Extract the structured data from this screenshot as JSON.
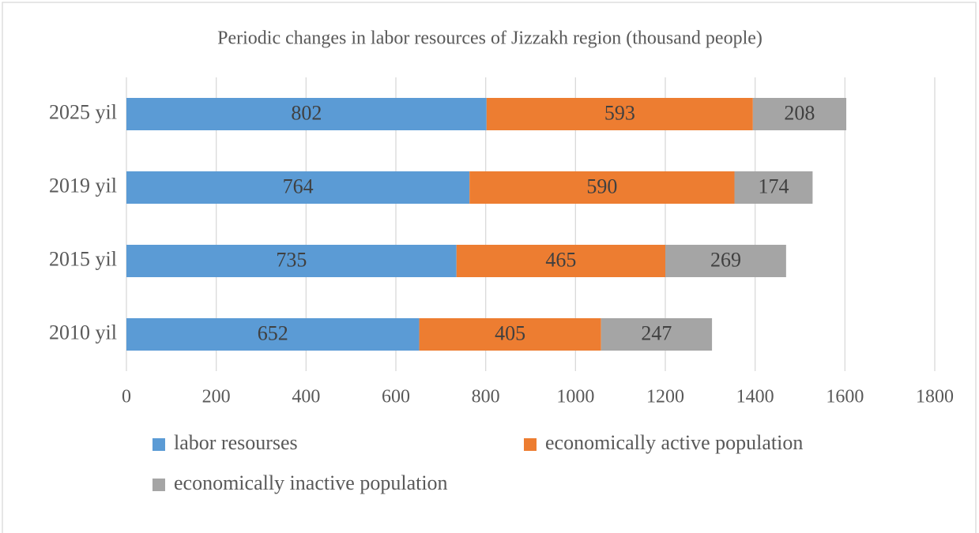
{
  "chart_data": {
    "type": "stacked-bar-horizontal",
    "title": "Periodic changes in labor resources of Jizzakh region (thousand people)",
    "categories": [
      "2010 yil",
      "2015 yil",
      "2019 yil",
      "2025 yil"
    ],
    "series": [
      {
        "name": "labor resourses",
        "color": "#5b9bd5",
        "values": [
          652,
          735,
          764,
          802
        ]
      },
      {
        "name": "economically active population",
        "color": "#ed7d31",
        "values": [
          405,
          465,
          590,
          593
        ]
      },
      {
        "name": "economically inactive population",
        "color": "#a5a5a5",
        "values": [
          247,
          269,
          174,
          208
        ]
      }
    ],
    "xlim": [
      0,
      1800
    ],
    "xticks": [
      0,
      200,
      400,
      600,
      800,
      1000,
      1200,
      1400,
      1600,
      1800
    ],
    "grid": true,
    "legend": "bottom"
  }
}
